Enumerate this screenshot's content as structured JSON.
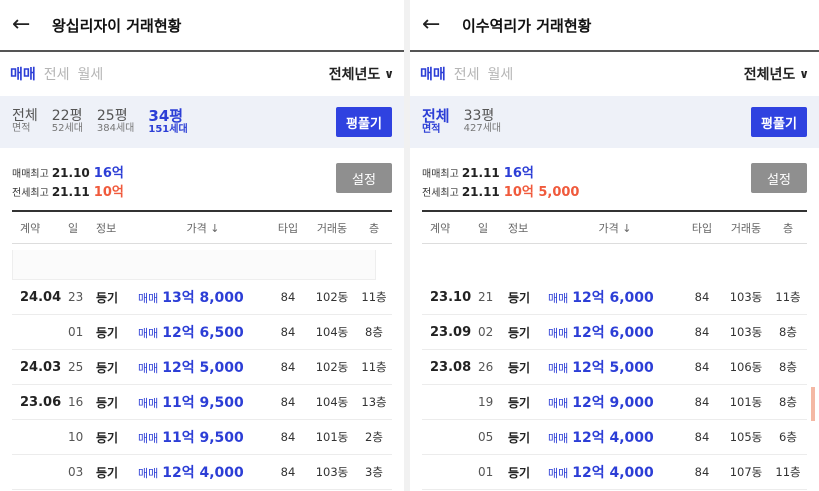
{
  "left": {
    "title": "왕십리자이 거래현황",
    "deal_types": [
      "매매",
      "전세",
      "월세"
    ],
    "year_filter": "전체년도",
    "areas": [
      {
        "main": "전체",
        "sub": "면적"
      },
      {
        "main": "22평",
        "sub": "52세대"
      },
      {
        "main": "25평",
        "sub": "384세대"
      },
      {
        "main": "34평",
        "sub": "151세대"
      }
    ],
    "pyeong_button": "평풀기",
    "max_sale": {
      "label": "매매최고",
      "ym": "21.10",
      "amount": "16억"
    },
    "max_jeonse": {
      "label": "전세최고",
      "ym": "21.11",
      "amount": "10억"
    },
    "settings_button": "설정",
    "columns": [
      "계약",
      "일",
      "정보",
      "가격 ↓",
      "타입",
      "거래동",
      "층"
    ],
    "rows": [
      {
        "ym": "24.04",
        "day": "23",
        "info": "등기",
        "kind": "매매",
        "price": "13억 8,000",
        "type": "84",
        "dong": "102동",
        "floor": "11층"
      },
      {
        "ym": "",
        "day": "01",
        "info": "등기",
        "kind": "매매",
        "price": "12억 6,500",
        "type": "84",
        "dong": "104동",
        "floor": "8층"
      },
      {
        "ym": "24.03",
        "day": "25",
        "info": "등기",
        "kind": "매매",
        "price": "12억 5,000",
        "type": "84",
        "dong": "102동",
        "floor": "11층"
      },
      {
        "ym": "23.06",
        "day": "16",
        "info": "등기",
        "kind": "매매",
        "price": "11억 9,500",
        "type": "84",
        "dong": "104동",
        "floor": "13층"
      },
      {
        "ym": "",
        "day": "10",
        "info": "등기",
        "kind": "매매",
        "price": "11억 9,500",
        "type": "84",
        "dong": "101동",
        "floor": "2층"
      },
      {
        "ym": "",
        "day": "03",
        "info": "등기",
        "kind": "매매",
        "price": "12억 4,000",
        "type": "84",
        "dong": "103동",
        "floor": "3층"
      }
    ]
  },
  "right": {
    "title": "이수역리가 거래현황",
    "deal_types": [
      "매매",
      "전세",
      "월세"
    ],
    "year_filter": "전체년도",
    "areas": [
      {
        "main": "전체",
        "sub": "면적"
      },
      {
        "main": "33평",
        "sub": "427세대"
      }
    ],
    "pyeong_button": "평풀기",
    "max_sale": {
      "label": "매매최고",
      "ym": "21.11",
      "amount": "16억"
    },
    "max_jeonse": {
      "label": "전세최고",
      "ym": "21.11",
      "amount": "10억 5,000"
    },
    "settings_button": "설정",
    "columns": [
      "계약",
      "일",
      "정보",
      "가격 ↓",
      "타입",
      "거래동",
      "층"
    ],
    "rows": [
      {
        "ym": "23.10",
        "day": "21",
        "info": "등기",
        "kind": "매매",
        "price": "12억 6,000",
        "type": "84",
        "dong": "103동",
        "floor": "11층"
      },
      {
        "ym": "23.09",
        "day": "02",
        "info": "등기",
        "kind": "매매",
        "price": "12억 6,000",
        "type": "84",
        "dong": "103동",
        "floor": "8층"
      },
      {
        "ym": "23.08",
        "day": "26",
        "info": "등기",
        "kind": "매매",
        "price": "12억 5,000",
        "type": "84",
        "dong": "106동",
        "floor": "8층"
      },
      {
        "ym": "",
        "day": "19",
        "info": "등기",
        "kind": "매매",
        "price": "12억 9,000",
        "type": "84",
        "dong": "101동",
        "floor": "8층"
      },
      {
        "ym": "",
        "day": "05",
        "info": "등기",
        "kind": "매매",
        "price": "12억 4,000",
        "type": "84",
        "dong": "105동",
        "floor": "6층"
      },
      {
        "ym": "",
        "day": "01",
        "info": "등기",
        "kind": "매매",
        "price": "12억 4,000",
        "type": "84",
        "dong": "107동",
        "floor": "11층"
      }
    ]
  },
  "colors": {
    "accent": "#2c3ed6",
    "jeonse": "#f05a3c",
    "button": "#2f42e0",
    "settings": "#8f8f8f",
    "area_bg": "#eef1f8"
  }
}
